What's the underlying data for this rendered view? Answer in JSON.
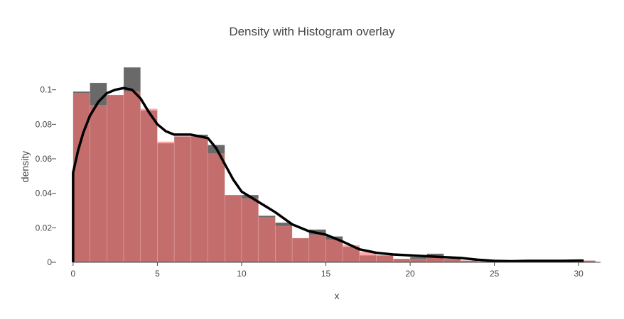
{
  "chart_data": {
    "type": "bar",
    "title": "Density with Histogram overlay",
    "xlabel": "x",
    "ylabel": "density",
    "xlim": [
      -0.5,
      31.3
    ],
    "ylim": [
      0,
      0.12
    ],
    "x_ticks": [
      0,
      5,
      10,
      15,
      20,
      25,
      30
    ],
    "y_ticks": [
      0,
      0.02,
      0.04,
      0.06,
      0.08,
      0.1
    ],
    "y_tick_labels": [
      "0",
      "0.02",
      "0.04",
      "0.06",
      "0.08",
      "0.1"
    ],
    "bin_width": 1,
    "grid": false,
    "legend": "none",
    "colors": {
      "histogram_dark": "#444444",
      "histogram_red": "#ff6f6f",
      "density_line": "#000000",
      "text": "#444444"
    },
    "series": [
      {
        "type": "histogram",
        "color": "#444444",
        "bin_starts": [
          0,
          1,
          2,
          3,
          4,
          5,
          6,
          7,
          8,
          9,
          10,
          11,
          12,
          13,
          14,
          15,
          16,
          17,
          18,
          19,
          20,
          21,
          22,
          23,
          24,
          25,
          26,
          27,
          28,
          29,
          30
        ],
        "values": [
          0.099,
          0.104,
          0.097,
          0.113,
          0.088,
          0.069,
          0.073,
          0.074,
          0.068,
          0.039,
          0.039,
          0.027,
          0.023,
          0.014,
          0.019,
          0.015,
          0.009,
          0.004,
          0.004,
          0.002,
          0.003,
          0.005,
          0.002,
          0.001,
          0.0005,
          0,
          0,
          0,
          0,
          0,
          0.001
        ]
      },
      {
        "type": "histogram",
        "color": "#ff6f6f",
        "bin_starts": [
          0,
          1,
          2,
          3,
          4,
          5,
          6,
          7,
          8,
          9,
          10,
          11,
          12,
          13,
          14,
          15,
          16,
          17,
          18,
          19,
          20,
          21,
          22,
          23,
          24,
          25,
          26,
          27,
          28,
          29,
          30
        ],
        "values": [
          0.098,
          0.091,
          0.097,
          0.099,
          0.089,
          0.07,
          0.073,
          0.073,
          0.063,
          0.039,
          0.037,
          0.026,
          0.021,
          0.014,
          0.016,
          0.013,
          0.01,
          0.006,
          0.004,
          0.002,
          0.002,
          0.003,
          0.002,
          0.001,
          0.0005,
          0,
          0,
          0,
          0,
          0,
          0.001
        ]
      },
      {
        "type": "line",
        "color": "#000000",
        "x": [
          0,
          0.3,
          0.6,
          1,
          1.5,
          2,
          2.5,
          3,
          3.5,
          4,
          4.5,
          5,
          5.5,
          6,
          7,
          8,
          8.5,
          9,
          9.5,
          10,
          11,
          12,
          13,
          14,
          15,
          16,
          17,
          18,
          19,
          20,
          21,
          22,
          23,
          24,
          25,
          26,
          27,
          28,
          29,
          30,
          30.3
        ],
        "y": [
          0.052,
          0.065,
          0.075,
          0.085,
          0.093,
          0.098,
          0.1,
          0.101,
          0.1,
          0.095,
          0.087,
          0.08,
          0.076,
          0.074,
          0.074,
          0.072,
          0.066,
          0.057,
          0.048,
          0.041,
          0.035,
          0.029,
          0.022,
          0.018,
          0.016,
          0.012,
          0.0075,
          0.0055,
          0.0045,
          0.004,
          0.0035,
          0.003,
          0.0025,
          0.0015,
          0.0008,
          0.0006,
          0.0008,
          0.0008,
          0.0008,
          0.001,
          0.001
        ]
      }
    ]
  }
}
